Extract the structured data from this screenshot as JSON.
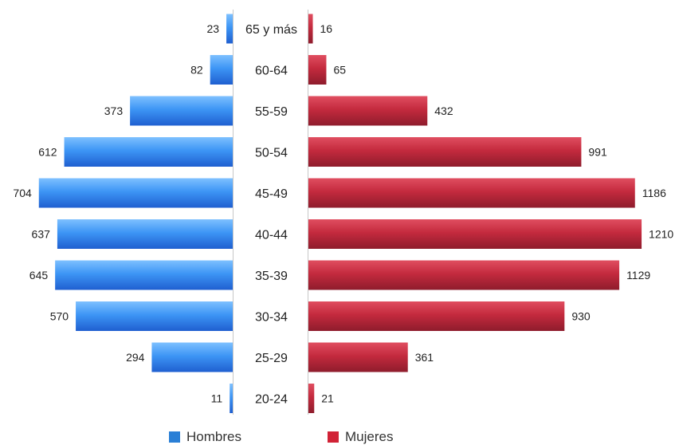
{
  "chart_data": {
    "type": "bar",
    "orientation": "horizontal-diverging",
    "categories": [
      "65 y más",
      "60-64",
      "55-59",
      "50-54",
      "45-49",
      "40-44",
      "35-39",
      "30-34",
      "25-29",
      "20-24"
    ],
    "series": [
      {
        "name": "Hombres",
        "values": [
          23,
          82,
          373,
          612,
          704,
          637,
          645,
          570,
          294,
          11
        ],
        "color": "#2f7fe8"
      },
      {
        "name": "Mujeres",
        "values": [
          16,
          65,
          432,
          991,
          1186,
          1210,
          1129,
          930,
          361,
          21
        ],
        "color": "#c0283c"
      }
    ],
    "legend_position": "bottom",
    "grid": false
  }
}
